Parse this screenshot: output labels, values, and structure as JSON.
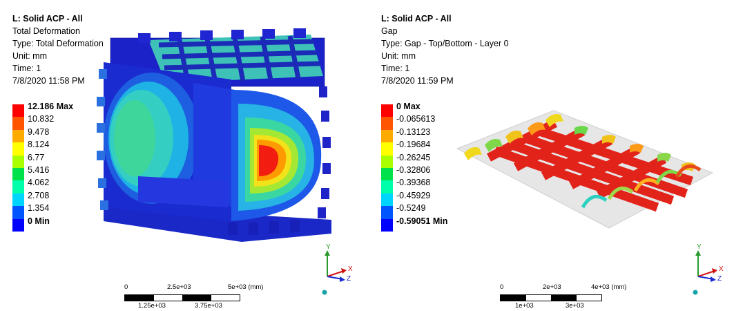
{
  "left": {
    "title": "L: Solid ACP - All",
    "result": "Total Deformation",
    "type": "Type: Total Deformation",
    "unit": "Unit: mm",
    "time": "Time: 1",
    "date": "7/8/2020 11:58 PM",
    "legend": [
      {
        "label": "12.186 Max",
        "color": "#ff0000",
        "bold": true
      },
      {
        "label": "10.832",
        "color": "#ff5500"
      },
      {
        "label": "9.478",
        "color": "#ffaa00"
      },
      {
        "label": "8.124",
        "color": "#ffff00"
      },
      {
        "label": "6.77",
        "color": "#aaff00"
      },
      {
        "label": "5.416",
        "color": "#00e14c"
      },
      {
        "label": "4.062",
        "color": "#00ffaa"
      },
      {
        "label": "2.708",
        "color": "#00d5ff"
      },
      {
        "label": "1.354",
        "color": "#0055ff"
      },
      {
        "label": "0 Min",
        "color": "#0000ff",
        "bold": true
      }
    ],
    "scale": {
      "ticks": [
        "0",
        "2.5e+03",
        "5e+03 (mm)"
      ],
      "sub": [
        "1.25e+03",
        "3.75e+03"
      ]
    },
    "axes": {
      "y": "Y",
      "x": "X",
      "z": "Z"
    }
  },
  "right": {
    "title": "L: Solid ACP - All",
    "result": "Gap",
    "type": "Type: Gap - Top/Bottom - Layer 0",
    "unit": "Unit: mm",
    "time": "Time: 1",
    "date": "7/8/2020 11:59 PM",
    "legend": [
      {
        "label": "0 Max",
        "color": "#ff0000",
        "bold": true
      },
      {
        "label": "-0.065613",
        "color": "#ff5500"
      },
      {
        "label": "-0.13123",
        "color": "#ffaa00"
      },
      {
        "label": "-0.19684",
        "color": "#ffff00"
      },
      {
        "label": "-0.26245",
        "color": "#aaff00"
      },
      {
        "label": "-0.32806",
        "color": "#00e14c"
      },
      {
        "label": "-0.39368",
        "color": "#00ffaa"
      },
      {
        "label": "-0.45929",
        "color": "#00d5ff"
      },
      {
        "label": "-0.5249",
        "color": "#0055ff"
      },
      {
        "label": "-0.59051 Min",
        "color": "#0000ff",
        "bold": true
      }
    ],
    "scale": {
      "ticks": [
        "0",
        "2e+03",
        "4e+03 (mm)"
      ],
      "sub": [
        "1e+03",
        "3e+03"
      ]
    },
    "axes": {
      "y": "Y",
      "x": "X",
      "z": "Z"
    }
  }
}
